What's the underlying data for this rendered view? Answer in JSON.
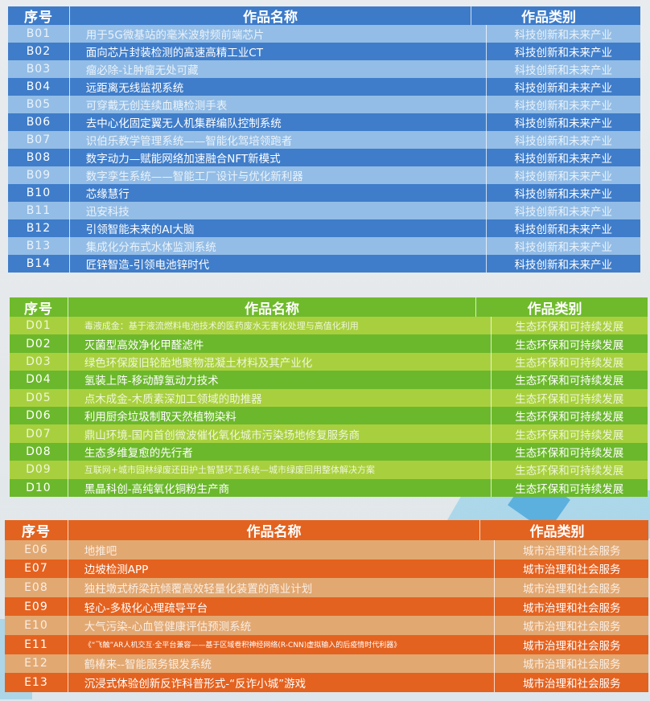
{
  "colors": {
    "blue_dark": "#3f7dca",
    "blue_light": "#93bde6",
    "green_dark": "#6cb82c",
    "green_light": "#a8d03e",
    "orange_dark": "#e4621f",
    "orange_light": "#e2a872"
  },
  "tables": [
    {
      "id": "blue",
      "headers": [
        "序号",
        "作品名称",
        "作品类别"
      ],
      "rows": [
        {
          "no": "B01",
          "name": "用于5G微基站的毫米波射频前端芯片",
          "category": "科技创新和未来产业"
        },
        {
          "no": "B02",
          "name": "面向芯片封装检测的高速高精工业CT",
          "category": "科技创新和未来产业"
        },
        {
          "no": "B03",
          "name": "瘤必除-让肿瘤无处可藏",
          "category": "科技创新和未来产业"
        },
        {
          "no": "B04",
          "name": "远距离无线监视系统",
          "category": "科技创新和未来产业"
        },
        {
          "no": "B05",
          "name": "可穿戴无创连续血糖检测手表",
          "category": "科技创新和未来产业"
        },
        {
          "no": "B06",
          "name": "去中心化固定翼无人机集群编队控制系统",
          "category": "科技创新和未来产业"
        },
        {
          "no": "B07",
          "name": "识伯乐教学管理系统——智能化驾培领跑者",
          "category": "科技创新和未来产业"
        },
        {
          "no": "B08",
          "name": "数字动力—赋能网络加速融合NFT新模式",
          "category": "科技创新和未来产业"
        },
        {
          "no": "B09",
          "name": "数字孪生系统——智能工厂设计与优化新利器",
          "category": "科技创新和未来产业"
        },
        {
          "no": "B10",
          "name": "芯缘慧行",
          "category": "科技创新和未来产业"
        },
        {
          "no": "B11",
          "name": "迅安科技",
          "category": "科技创新和未来产业"
        },
        {
          "no": "B12",
          "name": "引领智能未来的AI大脑",
          "category": "科技创新和未来产业"
        },
        {
          "no": "B13",
          "name": "集成化分布式水体监测系统",
          "category": "科技创新和未来产业"
        },
        {
          "no": "B14",
          "name": "匠锌智造-引领电池锌时代",
          "category": "科技创新和未来产业"
        }
      ]
    },
    {
      "id": "green",
      "headers": [
        "序号",
        "作品名称",
        "作品类别"
      ],
      "rows": [
        {
          "no": "D01",
          "name": "毒液成金：基于液流燃料电池技术的医药废水无害化处理与高值化利用",
          "category": "生态环保和可持续发展"
        },
        {
          "no": "D02",
          "name": "灭菌型高效净化甲醛滤件",
          "category": "生态环保和可持续发展"
        },
        {
          "no": "D03",
          "name": "绿色环保废旧轮胎地聚物混凝土材料及其产业化",
          "category": "生态环保和可持续发展"
        },
        {
          "no": "D04",
          "name": "氢装上阵-移动醇氢动力技术",
          "category": "生态环保和可持续发展"
        },
        {
          "no": "D05",
          "name": "点木成金-木质素深加工领域的助推器",
          "category": "生态环保和可持续发展"
        },
        {
          "no": "D06",
          "name": "利用厨余垃圾制取天然植物染料",
          "category": "生态环保和可持续发展"
        },
        {
          "no": "D07",
          "name": "鼎山环境-国内首创微波催化氧化城市污染场地修复服务商",
          "category": "生态环保和可持续发展"
        },
        {
          "no": "D08",
          "name": "生态多维复愈的先行者",
          "category": "生态环保和可持续发展"
        },
        {
          "no": "D09",
          "name": "互联网+城市园林绿废还田护土智慧环卫系统—城市绿废回用整体解决方案",
          "category": "生态环保和可持续发展"
        },
        {
          "no": "D10",
          "name": "黑晶科创-高纯氧化铜粉生产商",
          "category": "生态环保和可持续发展"
        }
      ]
    },
    {
      "id": "orange",
      "headers": [
        "序号",
        "作品名称",
        "作品类别"
      ],
      "rows": [
        {
          "no": "E06",
          "name": "地推吧",
          "category": "城市治理和社会服务"
        },
        {
          "no": "E07",
          "name": "边坡检测APP",
          "category": "城市治理和社会服务"
        },
        {
          "no": "E08",
          "name": "独柱墩式桥梁抗倾覆高效轻量化装置的商业计划",
          "category": "城市治理和社会服务"
        },
        {
          "no": "E09",
          "name": "轻心-多极化心理疏导平台",
          "category": "城市治理和社会服务"
        },
        {
          "no": "E10",
          "name": "大气污染-心血管健康评估预测系统",
          "category": "城市治理和社会服务"
        },
        {
          "no": "E11",
          "name": "《“飞触”AR人机交互·全平台兼容——基于区域卷积神经网络(R-CNN)虚拟输入的后疫情时代利器》",
          "category": "城市治理和社会服务"
        },
        {
          "no": "E12",
          "name": "鹤椿来--智能服务银发系统",
          "category": "城市治理和社会服务"
        },
        {
          "no": "E13",
          "name": "沉浸式体验创新反诈科普形式-“反诈小城”游戏",
          "category": "城市治理和社会服务"
        }
      ]
    }
  ]
}
